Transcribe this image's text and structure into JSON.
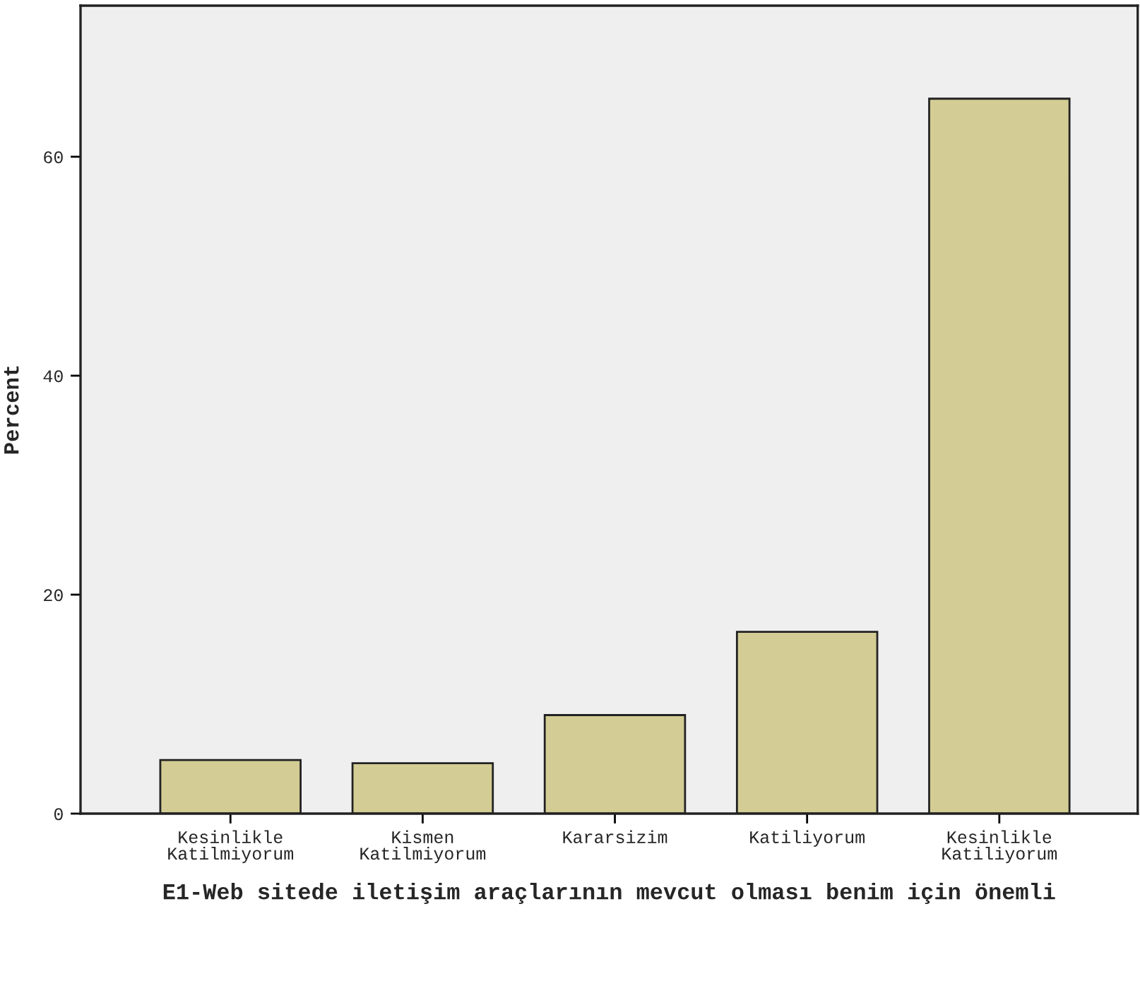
{
  "chart_data": {
    "type": "bar",
    "xlabel": "E1-Web sitede iletişim araçlarının mevcut olması benim için önemli",
    "ylabel": "Percent",
    "categories": [
      "Kesinlikle\nKatilmiyorum",
      "Kismen\nKatilmiyorum",
      "Kararsizim",
      "Katiliyorum",
      "Kesinlikle\nKatiliyorum"
    ],
    "values": [
      4.9,
      4.6,
      9.0,
      16.6,
      65.3
    ],
    "color": "#d3cc95",
    "ylim": [
      0,
      73.8
    ],
    "yticks": [
      0,
      20,
      40,
      60
    ],
    "grid": false
  }
}
